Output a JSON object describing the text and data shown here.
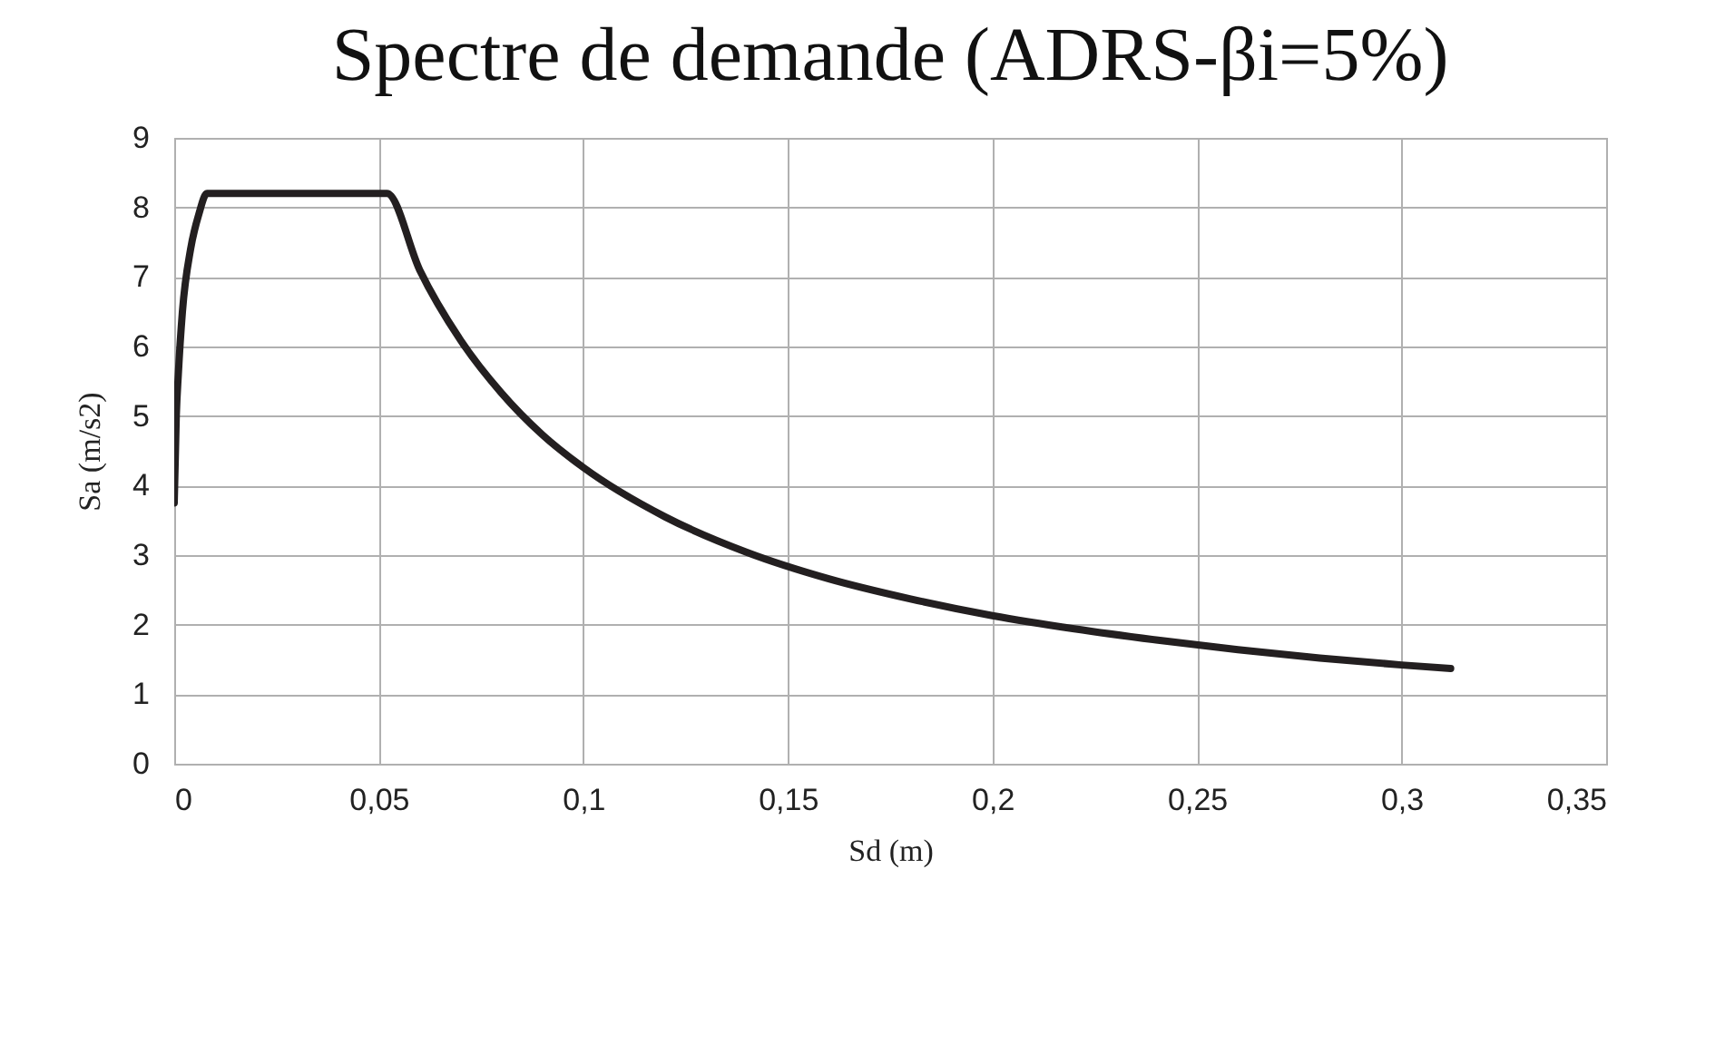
{
  "chart_data": {
    "type": "line",
    "title": "Spectre de demande (ADRS-βi=5%)",
    "xlabel": "Sd (m)",
    "ylabel": "Sa (m/s2)",
    "x": [
      0,
      0.0005,
      0.001,
      0.002,
      0.004,
      0.006,
      0.008,
      0.052,
      0.06,
      0.07,
      0.08,
      0.09,
      0.1,
      0.12,
      0.14,
      0.16,
      0.18,
      0.2,
      0.22,
      0.24,
      0.26,
      0.28,
      0.3,
      0.312
    ],
    "series": [
      {
        "color": "#231f20",
        "values": [
          3.75,
          5,
          5.6,
          6.5,
          7.4,
          7.9,
          8.2,
          8.2,
          7.1,
          6.09,
          5.33,
          4.73,
          4.26,
          3.55,
          3.04,
          2.66,
          2.37,
          2.13,
          1.94,
          1.78,
          1.64,
          1.52,
          1.42,
          1.37
        ]
      }
    ],
    "xlim": [
      0,
      0.35
    ],
    "xticks": [
      0,
      {
        "value": 0.05,
        "label": "0,05"
      },
      {
        "value": 0.1,
        "label": "0,1"
      },
      {
        "value": 0.15,
        "label": "0,15"
      },
      {
        "value": 0.2,
        "label": "0,2"
      },
      {
        "value": 0.25,
        "label": "0,25"
      },
      {
        "value": 0.3,
        "label": "0,3"
      },
      {
        "value": 0.35,
        "label": "0,35"
      }
    ],
    "ylim": [
      0,
      9
    ],
    "yticks": [
      0,
      1,
      2,
      3,
      4,
      5,
      6,
      7,
      8,
      9
    ],
    "grid": true,
    "marker": "none",
    "line_style": "solid"
  }
}
